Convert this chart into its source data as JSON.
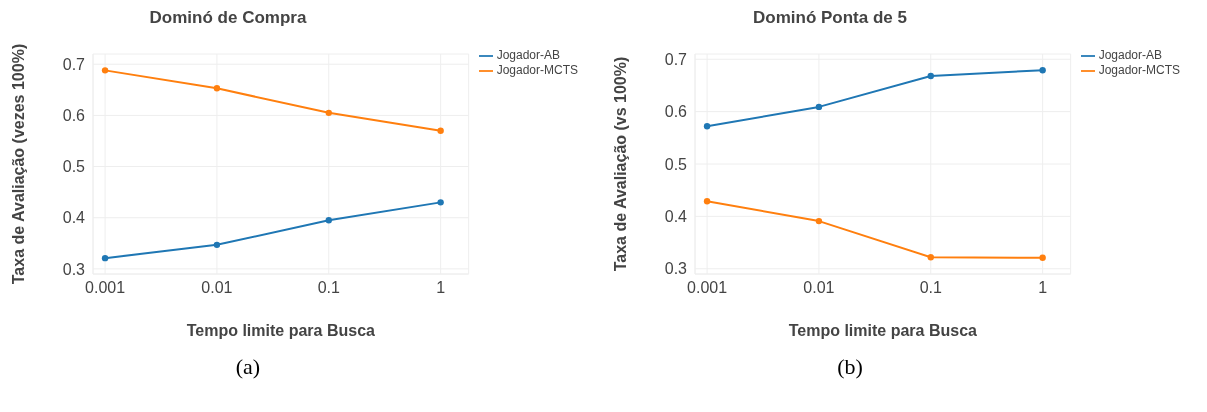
{
  "chart_data": [
    {
      "type": "line",
      "title": "Dominó de Compra",
      "xlabel": "Tempo limite para Busca",
      "ylabel": "Taxa de Avaliação (vezes 100%)",
      "x": [
        0.001,
        0.01,
        0.1,
        1
      ],
      "xlim": [
        0.00078,
        1.78
      ],
      "xticks": [
        0.001,
        0.01,
        0.1,
        1
      ],
      "log": "x",
      "ylim": [
        0.29,
        0.72
      ],
      "yticks": [
        0.3,
        0.4,
        0.5,
        0.6,
        0.7
      ],
      "grid": true,
      "legend": "top right",
      "marker": "circle",
      "line_style": "solid",
      "annotations": [
        "(a)"
      ],
      "series": [
        {
          "name": "Jogador-AB",
          "color": "#1f77b4",
          "values": [
            0.321,
            0.347,
            0.395,
            0.43
          ]
        },
        {
          "name": "Jogador-MCTS",
          "color": "#ff7f0e",
          "values": [
            0.688,
            0.653,
            0.605,
            0.57
          ]
        }
      ]
    },
    {
      "type": "line",
      "title": "Dominó Ponta de 5",
      "xlabel": "Tempo limite para Busca",
      "ylabel": "Taxa de Avaliação (vs 100%)",
      "x": [
        0.001,
        0.01,
        0.1,
        1
      ],
      "xlim": [
        0.00078,
        1.78
      ],
      "xticks": [
        0.001,
        0.01,
        0.1,
        1
      ],
      "log": "x",
      "ylim": [
        0.29,
        0.71
      ],
      "yticks": [
        0.3,
        0.4,
        0.5,
        0.6,
        0.7
      ],
      "grid": true,
      "legend": "top right",
      "marker": "circle",
      "line_style": "solid",
      "annotations": [
        "(b)"
      ],
      "series": [
        {
          "name": "Jogador-AB",
          "color": "#1f77b4",
          "values": [
            0.572,
            0.609,
            0.668,
            0.679
          ]
        },
        {
          "name": "Jogador-MCTS",
          "color": "#ff7f0e",
          "values": [
            0.429,
            0.391,
            0.322,
            0.321
          ]
        }
      ]
    }
  ]
}
